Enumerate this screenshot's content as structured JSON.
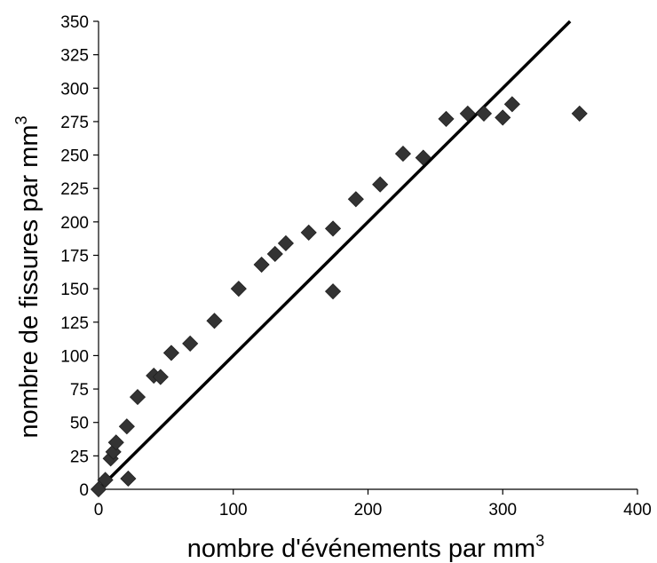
{
  "chart_data": {
    "type": "scatter",
    "title": "",
    "xlabel": {
      "base": "nombre d'événements par mm",
      "sup": "3"
    },
    "ylabel": {
      "base": "nombre de fissures par mm",
      "sup": "3"
    },
    "xlim": [
      0,
      400
    ],
    "ylim": [
      0,
      350
    ],
    "x_ticks": [
      "0",
      "100",
      "200",
      "300",
      "400"
    ],
    "y_ticks": [
      "0",
      "25",
      "50",
      "75",
      "100",
      "125",
      "150",
      "175",
      "200",
      "225",
      "250",
      "275",
      "300",
      "325",
      "350"
    ],
    "grid": false,
    "marker": "diamond",
    "marker_color": "#333333",
    "line_color": "#000000",
    "points": [
      {
        "x": 0,
        "y": 0
      },
      {
        "x": 5,
        "y": 7
      },
      {
        "x": 9,
        "y": 23
      },
      {
        "x": 11,
        "y": 28
      },
      {
        "x": 13,
        "y": 35
      },
      {
        "x": 21,
        "y": 47
      },
      {
        "x": 22,
        "y": 8
      },
      {
        "x": 29,
        "y": 69
      },
      {
        "x": 41,
        "y": 85
      },
      {
        "x": 46,
        "y": 84
      },
      {
        "x": 54,
        "y": 102
      },
      {
        "x": 68,
        "y": 109
      },
      {
        "x": 86,
        "y": 126
      },
      {
        "x": 104,
        "y": 150
      },
      {
        "x": 121,
        "y": 168
      },
      {
        "x": 131,
        "y": 176
      },
      {
        "x": 139,
        "y": 184
      },
      {
        "x": 156,
        "y": 192
      },
      {
        "x": 174,
        "y": 195
      },
      {
        "x": 174,
        "y": 148
      },
      {
        "x": 191,
        "y": 217
      },
      {
        "x": 209,
        "y": 228
      },
      {
        "x": 226,
        "y": 251
      },
      {
        "x": 241,
        "y": 248
      },
      {
        "x": 258,
        "y": 277
      },
      {
        "x": 274,
        "y": 281
      },
      {
        "x": 286,
        "y": 281
      },
      {
        "x": 300,
        "y": 278
      },
      {
        "x": 307,
        "y": 288
      },
      {
        "x": 357,
        "y": 281
      }
    ],
    "line": {
      "x": [
        0,
        350
      ],
      "y": [
        0,
        350
      ]
    }
  }
}
